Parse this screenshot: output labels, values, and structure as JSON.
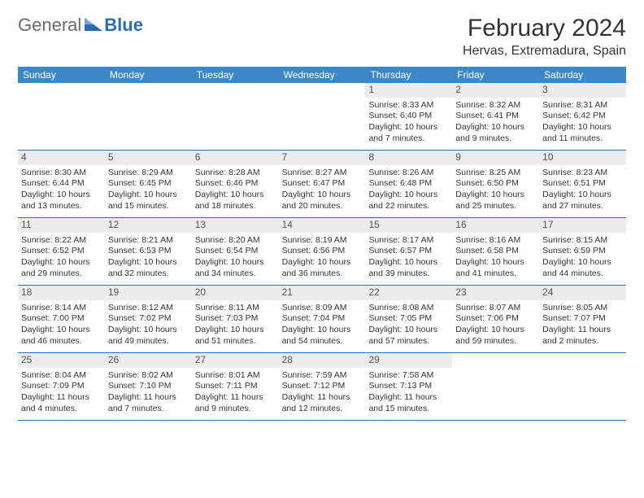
{
  "logo": {
    "text1": "General",
    "text2": "Blue"
  },
  "title": "February 2024",
  "location": "Hervas, Extremadura, Spain",
  "weekdays": [
    "Sunday",
    "Monday",
    "Tuesday",
    "Wednesday",
    "Thursday",
    "Friday",
    "Saturday"
  ],
  "colors": {
    "header_bg": "#3b87c8",
    "rule": "#2a6db3",
    "daynum_bg": "#ececec",
    "logo_gray": "#6a6a6a",
    "logo_blue": "#2a6db3"
  },
  "weeks": [
    [
      null,
      null,
      null,
      null,
      {
        "num": "1",
        "sunrise": "Sunrise: 8:33 AM",
        "sunset": "Sunset: 6:40 PM",
        "daylight1": "Daylight: 10 hours",
        "daylight2": "and 7 minutes."
      },
      {
        "num": "2",
        "sunrise": "Sunrise: 8:32 AM",
        "sunset": "Sunset: 6:41 PM",
        "daylight1": "Daylight: 10 hours",
        "daylight2": "and 9 minutes."
      },
      {
        "num": "3",
        "sunrise": "Sunrise: 8:31 AM",
        "sunset": "Sunset: 6:42 PM",
        "daylight1": "Daylight: 10 hours",
        "daylight2": "and 11 minutes."
      }
    ],
    [
      {
        "num": "4",
        "sunrise": "Sunrise: 8:30 AM",
        "sunset": "Sunset: 6:44 PM",
        "daylight1": "Daylight: 10 hours",
        "daylight2": "and 13 minutes."
      },
      {
        "num": "5",
        "sunrise": "Sunrise: 8:29 AM",
        "sunset": "Sunset: 6:45 PM",
        "daylight1": "Daylight: 10 hours",
        "daylight2": "and 15 minutes."
      },
      {
        "num": "6",
        "sunrise": "Sunrise: 8:28 AM",
        "sunset": "Sunset: 6:46 PM",
        "daylight1": "Daylight: 10 hours",
        "daylight2": "and 18 minutes."
      },
      {
        "num": "7",
        "sunrise": "Sunrise: 8:27 AM",
        "sunset": "Sunset: 6:47 PM",
        "daylight1": "Daylight: 10 hours",
        "daylight2": "and 20 minutes."
      },
      {
        "num": "8",
        "sunrise": "Sunrise: 8:26 AM",
        "sunset": "Sunset: 6:48 PM",
        "daylight1": "Daylight: 10 hours",
        "daylight2": "and 22 minutes."
      },
      {
        "num": "9",
        "sunrise": "Sunrise: 8:25 AM",
        "sunset": "Sunset: 6:50 PM",
        "daylight1": "Daylight: 10 hours",
        "daylight2": "and 25 minutes."
      },
      {
        "num": "10",
        "sunrise": "Sunrise: 8:23 AM",
        "sunset": "Sunset: 6:51 PM",
        "daylight1": "Daylight: 10 hours",
        "daylight2": "and 27 minutes."
      }
    ],
    [
      {
        "num": "11",
        "sunrise": "Sunrise: 8:22 AM",
        "sunset": "Sunset: 6:52 PM",
        "daylight1": "Daylight: 10 hours",
        "daylight2": "and 29 minutes."
      },
      {
        "num": "12",
        "sunrise": "Sunrise: 8:21 AM",
        "sunset": "Sunset: 6:53 PM",
        "daylight1": "Daylight: 10 hours",
        "daylight2": "and 32 minutes."
      },
      {
        "num": "13",
        "sunrise": "Sunrise: 8:20 AM",
        "sunset": "Sunset: 6:54 PM",
        "daylight1": "Daylight: 10 hours",
        "daylight2": "and 34 minutes."
      },
      {
        "num": "14",
        "sunrise": "Sunrise: 8:19 AM",
        "sunset": "Sunset: 6:56 PM",
        "daylight1": "Daylight: 10 hours",
        "daylight2": "and 36 minutes."
      },
      {
        "num": "15",
        "sunrise": "Sunrise: 8:17 AM",
        "sunset": "Sunset: 6:57 PM",
        "daylight1": "Daylight: 10 hours",
        "daylight2": "and 39 minutes."
      },
      {
        "num": "16",
        "sunrise": "Sunrise: 8:16 AM",
        "sunset": "Sunset: 6:58 PM",
        "daylight1": "Daylight: 10 hours",
        "daylight2": "and 41 minutes."
      },
      {
        "num": "17",
        "sunrise": "Sunrise: 8:15 AM",
        "sunset": "Sunset: 6:59 PM",
        "daylight1": "Daylight: 10 hours",
        "daylight2": "and 44 minutes."
      }
    ],
    [
      {
        "num": "18",
        "sunrise": "Sunrise: 8:14 AM",
        "sunset": "Sunset: 7:00 PM",
        "daylight1": "Daylight: 10 hours",
        "daylight2": "and 46 minutes."
      },
      {
        "num": "19",
        "sunrise": "Sunrise: 8:12 AM",
        "sunset": "Sunset: 7:02 PM",
        "daylight1": "Daylight: 10 hours",
        "daylight2": "and 49 minutes."
      },
      {
        "num": "20",
        "sunrise": "Sunrise: 8:11 AM",
        "sunset": "Sunset: 7:03 PM",
        "daylight1": "Daylight: 10 hours",
        "daylight2": "and 51 minutes."
      },
      {
        "num": "21",
        "sunrise": "Sunrise: 8:09 AM",
        "sunset": "Sunset: 7:04 PM",
        "daylight1": "Daylight: 10 hours",
        "daylight2": "and 54 minutes."
      },
      {
        "num": "22",
        "sunrise": "Sunrise: 8:08 AM",
        "sunset": "Sunset: 7:05 PM",
        "daylight1": "Daylight: 10 hours",
        "daylight2": "and 57 minutes."
      },
      {
        "num": "23",
        "sunrise": "Sunrise: 8:07 AM",
        "sunset": "Sunset: 7:06 PM",
        "daylight1": "Daylight: 10 hours",
        "daylight2": "and 59 minutes."
      },
      {
        "num": "24",
        "sunrise": "Sunrise: 8:05 AM",
        "sunset": "Sunset: 7:07 PM",
        "daylight1": "Daylight: 11 hours",
        "daylight2": "and 2 minutes."
      }
    ],
    [
      {
        "num": "25",
        "sunrise": "Sunrise: 8:04 AM",
        "sunset": "Sunset: 7:09 PM",
        "daylight1": "Daylight: 11 hours",
        "daylight2": "and 4 minutes."
      },
      {
        "num": "26",
        "sunrise": "Sunrise: 8:02 AM",
        "sunset": "Sunset: 7:10 PM",
        "daylight1": "Daylight: 11 hours",
        "daylight2": "and 7 minutes."
      },
      {
        "num": "27",
        "sunrise": "Sunrise: 8:01 AM",
        "sunset": "Sunset: 7:11 PM",
        "daylight1": "Daylight: 11 hours",
        "daylight2": "and 9 minutes."
      },
      {
        "num": "28",
        "sunrise": "Sunrise: 7:59 AM",
        "sunset": "Sunset: 7:12 PM",
        "daylight1": "Daylight: 11 hours",
        "daylight2": "and 12 minutes."
      },
      {
        "num": "29",
        "sunrise": "Sunrise: 7:58 AM",
        "sunset": "Sunset: 7:13 PM",
        "daylight1": "Daylight: 11 hours",
        "daylight2": "and 15 minutes."
      },
      null,
      null
    ]
  ]
}
